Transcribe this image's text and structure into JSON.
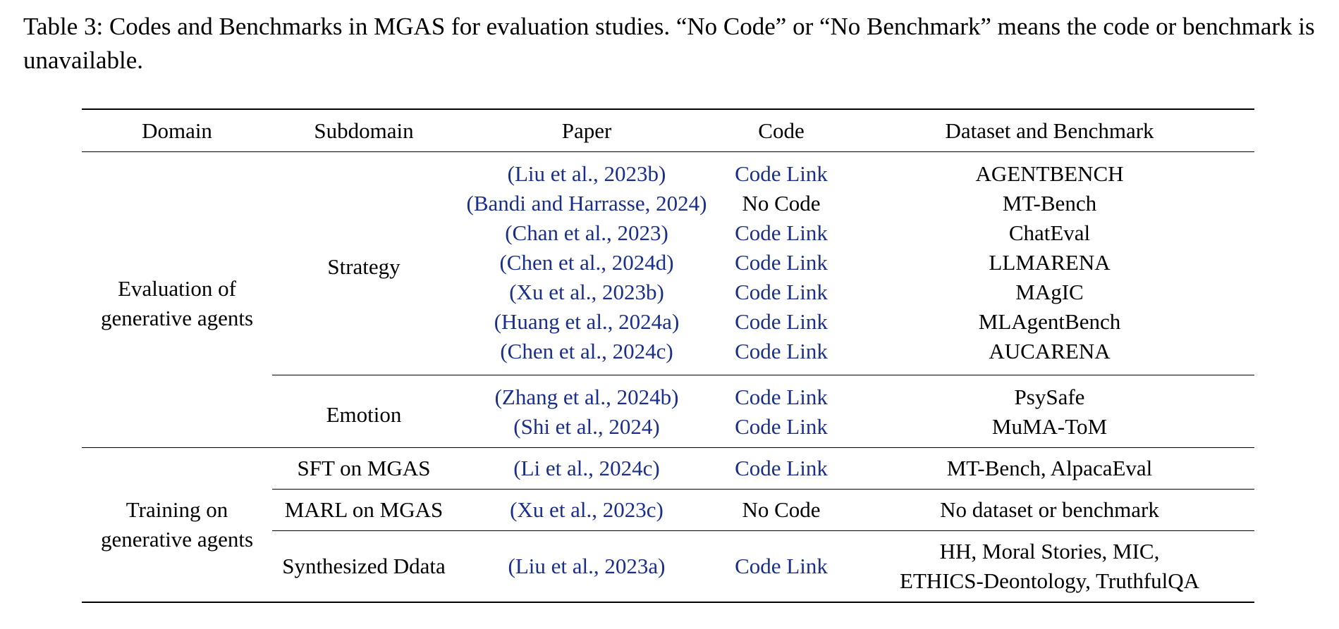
{
  "caption": "Table 3: Codes and Benchmarks in MGAS for evaluation studies. “No Code” or “No Benchmark” means the code or benchmark is unavailable.",
  "headers": [
    "Domain",
    "Subdomain",
    "Paper",
    "Code",
    "Dataset and Benchmark"
  ],
  "domains": {
    "evaluation_line1": "Evaluation of",
    "evaluation_line2": "generative agents",
    "training_line1": "Training on",
    "training_line2": "generative agents"
  },
  "subdomains": {
    "strategy": "Strategy",
    "emotion": "Emotion",
    "sft": "SFT on MGAS",
    "marl": "MARL on MGAS",
    "synth": "Synthesized Ddata"
  },
  "strategy_rows": [
    {
      "paper": "(Liu et al., 2023b)",
      "code": "Code Link",
      "code_is_link": true,
      "dataset": "AGENTBENCH"
    },
    {
      "paper": "(Bandi and Harrasse, 2024)",
      "code": "No Code",
      "code_is_link": false,
      "dataset": "MT-Bench"
    },
    {
      "paper": "(Chan et al., 2023)",
      "code": "Code Link",
      "code_is_link": true,
      "dataset": "ChatEval"
    },
    {
      "paper": "(Chen et al., 2024d)",
      "code": "Code Link",
      "code_is_link": true,
      "dataset": "LLMARENA"
    },
    {
      "paper": "(Xu et al., 2023b)",
      "code": "Code Link",
      "code_is_link": true,
      "dataset": "MAgIC"
    },
    {
      "paper": "(Huang et al., 2024a)",
      "code": "Code Link",
      "code_is_link": true,
      "dataset": "MLAgentBench"
    },
    {
      "paper": "(Chen et al., 2024c)",
      "code": "Code Link",
      "code_is_link": true,
      "dataset": "AUCARENA"
    }
  ],
  "emotion_rows": [
    {
      "paper": "(Zhang et al., 2024b)",
      "code": "Code Link",
      "code_is_link": true,
      "dataset": "PsySafe"
    },
    {
      "paper": "(Shi et al., 2024)",
      "code": "Code Link",
      "code_is_link": true,
      "dataset": "MuMA-ToM"
    }
  ],
  "training_rows": {
    "sft": {
      "paper": "(Li et al., 2024c)",
      "code": "Code Link",
      "dataset": "MT-Bench, AlpacaEval"
    },
    "marl": {
      "paper": "(Xu et al., 2023c)",
      "code": "No Code",
      "dataset": "No dataset or benchmark"
    },
    "synth": {
      "paper": "(Liu et al., 2023a)",
      "code": "Code Link",
      "dataset_line1": "HH, Moral Stories, MIC,",
      "dataset_line2": "ETHICS-Deontology, TruthfulQA"
    }
  },
  "colors": {
    "link": "#1a2e8c",
    "text": "#000000"
  }
}
